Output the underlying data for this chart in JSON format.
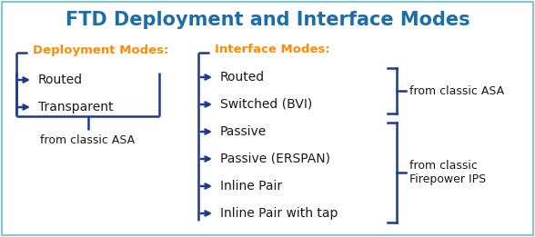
{
  "title": "FTD Deployment and Interface Modes",
  "title_color": "#1B6FA8",
  "title_fontsize": 15,
  "background_color": "#FFFFFF",
  "border_color": "#7EC8D8",
  "orange_color": "#FF8C00",
  "bracket_color": "#1A3A8C",
  "text_color": "#1A1A1A",
  "deployment_header": "Deployment Modes:",
  "deployment_items": [
    "Routed",
    "Transparent"
  ],
  "deployment_label": "from classic ASA",
  "interface_header": "Interface Modes:",
  "interface_items": [
    "Routed",
    "Switched (BVI)",
    "Passive",
    "Passive (ERSPAN)",
    "Inline Pair",
    "Inline Pair with tap"
  ],
  "interface_label_asa": "from classic ASA",
  "interface_label_fp": "from classic\nFirepower IPS"
}
